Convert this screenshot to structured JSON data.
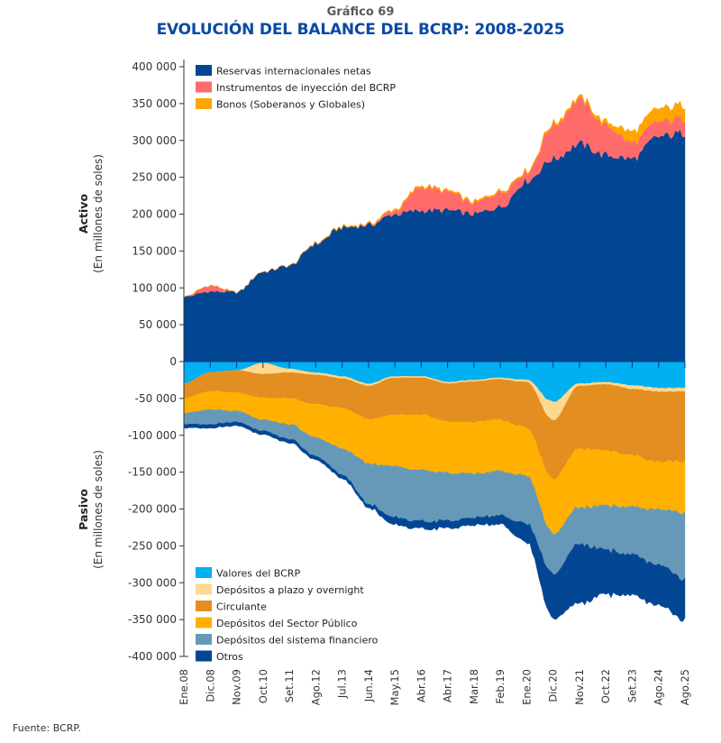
{
  "chart_data": [
    {
      "panel": "activo",
      "type": "area",
      "stacked": true,
      "title": "Gráfico 69",
      "subtitle": "EVOLUCIÓN DEL BALANCE DEL BCRP: 2008-2025",
      "ylabel": "Activo",
      "ylabel_units": "(En millones de soles)",
      "ylim": [
        0,
        400000
      ],
      "yticks": [
        0,
        50000,
        100000,
        150000,
        200000,
        250000,
        300000,
        350000,
        400000
      ],
      "ytick_labels": [
        "0",
        "50 000",
        "100 000",
        "150 000",
        "200 000",
        "250 000",
        "300 000",
        "350 000",
        "400 000"
      ],
      "legend_position": "top-left",
      "x": [
        "Ene.08",
        "Dic.08",
        "Nov.09",
        "Oct.10",
        "Set.11",
        "Ago.12",
        "Jul.13",
        "Jun.14",
        "May.15",
        "Abr.16",
        "Abr.17",
        "Mar.18",
        "Feb.19",
        "Ene.20",
        "Dic.20",
        "Nov.21",
        "Oct.22",
        "Set.23",
        "Ago.24",
        "Ago.25"
      ],
      "series": [
        {
          "name": "Reservas internacionales netas",
          "color": "#034694",
          "values": [
            88000,
            95000,
            94000,
            122000,
            130000,
            160000,
            182000,
            185000,
            200000,
            205000,
            205000,
            200000,
            210000,
            245000,
            275000,
            295000,
            280000,
            275000,
            305000,
            310000
          ]
        },
        {
          "name": "Instrumentos de inyección del BCRP",
          "color": "#FF6B6B",
          "values": [
            0,
            8000,
            0,
            0,
            0,
            0,
            0,
            1000,
            5000,
            32000,
            25000,
            15000,
            20000,
            12000,
            45000,
            60000,
            40000,
            22000,
            20000,
            20000
          ]
        },
        {
          "name": "Bonos (Soberanos y Globales)",
          "color": "#FFA500",
          "values": [
            0,
            0,
            0,
            0,
            0,
            1000,
            1000,
            1000,
            2000,
            2000,
            2000,
            2000,
            2000,
            2000,
            3000,
            3000,
            5000,
            15000,
            18000,
            18000
          ]
        }
      ]
    },
    {
      "panel": "pasivo",
      "type": "area",
      "stacked": true,
      "ylabel": "Pasivo",
      "ylabel_units": "(En millones de soles)",
      "ylim": [
        -400000,
        0
      ],
      "yticks": [
        0,
        -50000,
        -100000,
        -150000,
        -200000,
        -250000,
        -300000,
        -350000,
        -400000
      ],
      "ytick_labels": [
        "0",
        "-50 000",
        "-100 000",
        "-150 000",
        "-200 000",
        "-250 000",
        "-300 000",
        "-350 000",
        "-400 000"
      ],
      "legend_position": "bottom-left",
      "x": [
        "Ene.08",
        "Dic.08",
        "Nov.09",
        "Oct.10",
        "Set.11",
        "Ago.12",
        "Jul.13",
        "Jun.14",
        "May.15",
        "Abr.16",
        "Abr.17",
        "Mar.18",
        "Feb.19",
        "Ene.20",
        "Dic.20",
        "Nov.21",
        "Oct.22",
        "Set.23",
        "Ago.24",
        "Ago.25"
      ],
      "series": [
        {
          "name": "Valores del BCRP",
          "color": "#00B0F0",
          "values": [
            -30000,
            -15000,
            -12000,
            -2000,
            -10000,
            -15000,
            -20000,
            -30000,
            -20000,
            -20000,
            -28000,
            -25000,
            -22000,
            -25000,
            -55000,
            -30000,
            -28000,
            -32000,
            -36000,
            -36000
          ]
        },
        {
          "name": "Depósitos a plazo y overnight",
          "color": "#FFD890",
          "values": [
            0,
            0,
            0,
            -15000,
            -5000,
            -3000,
            -3000,
            -3000,
            -2000,
            -2000,
            -2000,
            -2000,
            -2000,
            -3000,
            -25000,
            -3000,
            -3000,
            -5000,
            -5000,
            -5000
          ]
        },
        {
          "name": "Circulante",
          "color": "#E38E20",
          "values": [
            -20000,
            -25000,
            -30000,
            -32000,
            -35000,
            -40000,
            -40000,
            -45000,
            -50000,
            -50000,
            -52000,
            -55000,
            -55000,
            -62000,
            -80000,
            -85000,
            -90000,
            -90000,
            -95000,
            -95000
          ]
        },
        {
          "name": "Depósitos del Sector Público",
          "color": "#FFB000",
          "values": [
            -20000,
            -25000,
            -25000,
            -30000,
            -35000,
            -45000,
            -55000,
            -60000,
            -70000,
            -75000,
            -70000,
            -70000,
            -70000,
            -65000,
            -75000,
            -80000,
            -75000,
            -70000,
            -65000,
            -70000
          ]
        },
        {
          "name": "Depósitos del sistema financiero",
          "color": "#6699B8",
          "values": [
            -15000,
            -20000,
            -15000,
            -15000,
            -20000,
            -25000,
            -35000,
            -55000,
            -70000,
            -70000,
            -65000,
            -60000,
            -60000,
            -65000,
            -55000,
            -50000,
            -60000,
            -65000,
            -75000,
            -90000
          ]
        },
        {
          "name": "Otros",
          "color": "#034694",
          "values": [
            -5000,
            -5000,
            -5000,
            -5000,
            -5000,
            -5000,
            -5000,
            -5000,
            -10000,
            -10000,
            -10000,
            -10000,
            -12000,
            -25000,
            -60000,
            -80000,
            -60000,
            -55000,
            -55000,
            -55000
          ]
        }
      ]
    }
  ],
  "header": {
    "subtitle": "Gráfico 69",
    "title": "EVOLUCIÓN DEL BALANCE DEL BCRP: 2008-2025"
  },
  "axes": {
    "activo_title": "Activo",
    "activo_units": "(En millones de soles)",
    "pasivo_title": "Pasivo",
    "pasivo_units": "(En millones de soles)"
  },
  "footer": {
    "source": "Fuente: BCRP."
  }
}
